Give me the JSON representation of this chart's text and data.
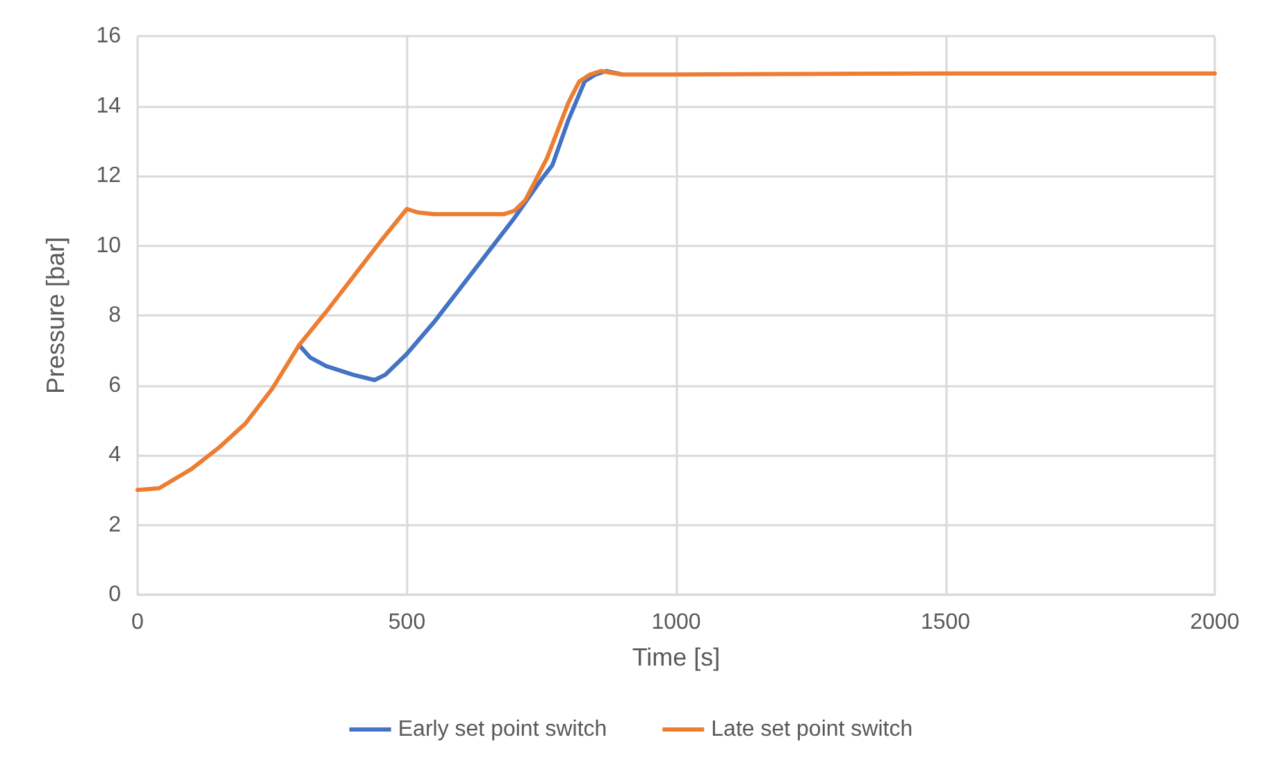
{
  "chart_data": {
    "type": "line",
    "xlabel": "Time [s]",
    "ylabel": "Pressure [bar]",
    "xlim": [
      0,
      2000
    ],
    "xticks": [
      0,
      500,
      1000,
      1500,
      2000
    ],
    "ylim": [
      0,
      16
    ],
    "yticks": [
      0,
      2,
      4,
      6,
      8,
      10,
      12,
      14,
      16
    ],
    "grid": true,
    "legend": "bottom",
    "marker": "none",
    "line_style": "solid",
    "series": [
      {
        "name": "Early set point switch",
        "color": "#4472c4",
        "x": [
          300,
          320,
          350,
          400,
          440,
          460,
          500,
          550,
          600,
          650,
          700,
          750,
          770,
          800,
          830,
          850,
          870,
          900
        ],
        "values": [
          7.15,
          6.8,
          6.55,
          6.3,
          6.15,
          6.3,
          6.9,
          7.8,
          8.8,
          9.8,
          10.8,
          11.9,
          12.3,
          13.6,
          14.7,
          14.9,
          15,
          14.9
        ]
      },
      {
        "name": "Late set point switch",
        "color": "#ed7d31",
        "x": [
          0,
          40,
          100,
          150,
          200,
          250,
          300,
          350,
          400,
          450,
          500,
          520,
          550,
          600,
          680,
          700,
          720,
          760,
          800,
          820,
          840,
          860,
          880,
          900,
          1000,
          1500,
          2000
        ],
        "values": [
          3,
          3.05,
          3.6,
          4.2,
          4.9,
          5.9,
          7.15,
          8.1,
          9.1,
          10.1,
          11.05,
          10.95,
          10.9,
          10.9,
          10.9,
          11,
          11.3,
          12.5,
          14.1,
          14.7,
          14.9,
          15,
          14.95,
          14.9,
          14.9,
          14.93,
          14.93
        ]
      }
    ]
  }
}
